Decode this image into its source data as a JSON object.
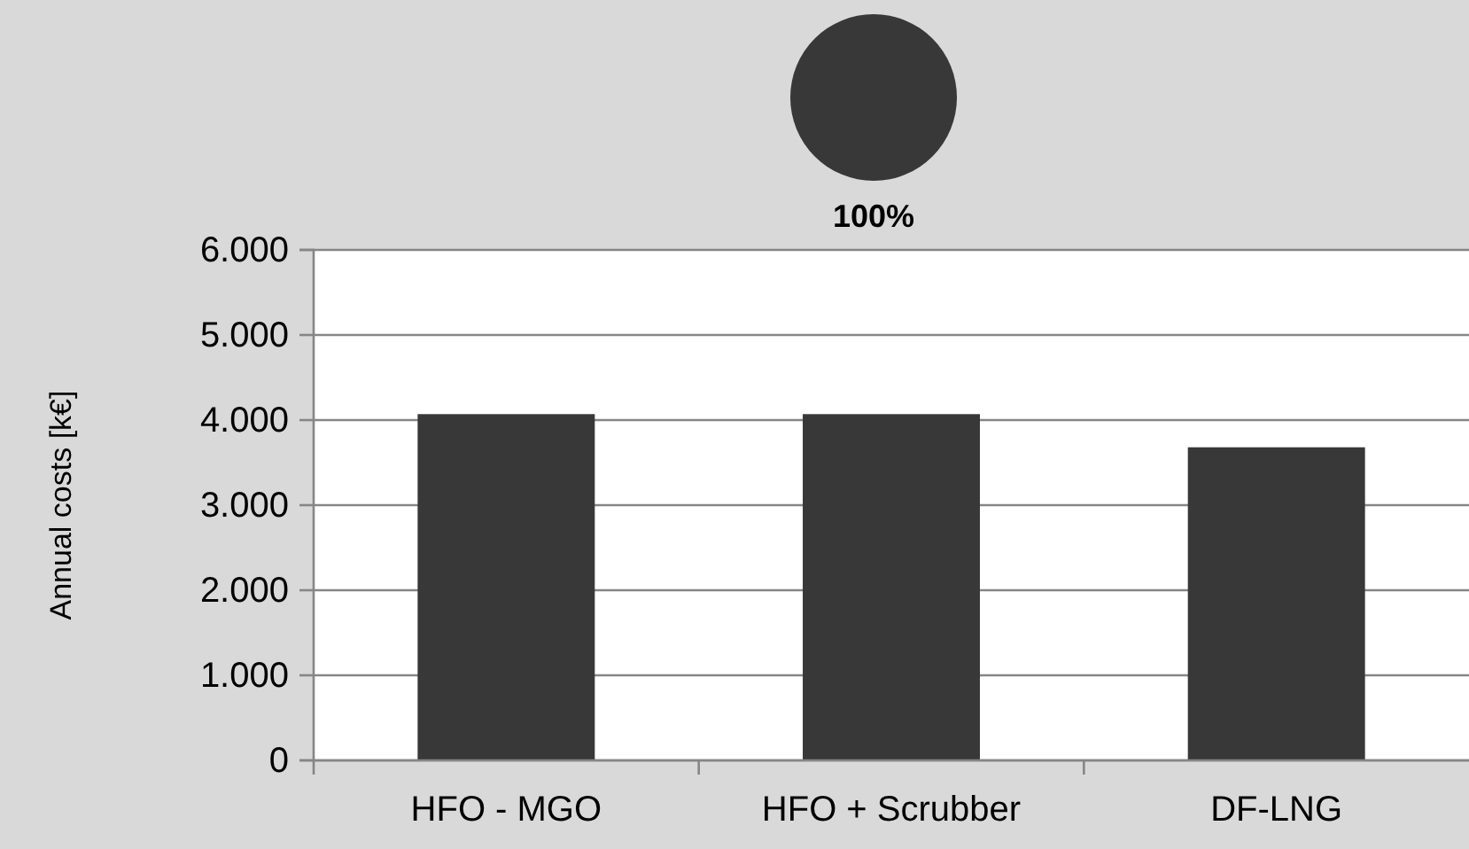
{
  "chart_data": [
    {
      "type": "pie",
      "categories": [
        null
      ],
      "values": [
        100
      ],
      "colors": [
        "#383838"
      ],
      "value_labels": [
        "100%"
      ]
    },
    {
      "type": "bar",
      "categories": [
        "HFO - MGO",
        "HFO + Scrubber",
        "DF-LNG"
      ],
      "values": [
        4070,
        4070,
        3680
      ],
      "color": "#383838",
      "ylabel": "Annual costs [k€]",
      "ylim": [
        0,
        6000
      ],
      "yticks": [
        {
          "value": 0,
          "label": "0"
        },
        {
          "value": 1000,
          "label": "1.000"
        },
        {
          "value": 2000,
          "label": "2.000"
        },
        {
          "value": 3000,
          "label": "3.000"
        },
        {
          "value": 4000,
          "label": "4.000"
        },
        {
          "value": 5000,
          "label": "5.000"
        },
        {
          "value": 6000,
          "label": "6.000"
        }
      ],
      "grid": "y"
    }
  ]
}
